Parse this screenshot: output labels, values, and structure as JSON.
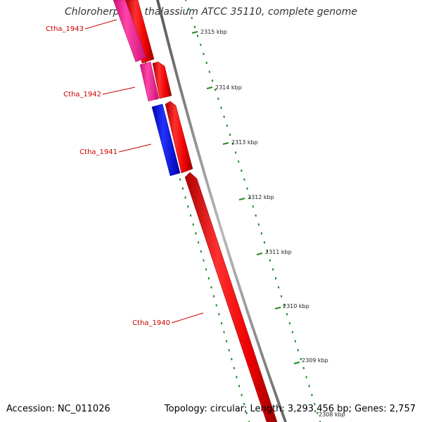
{
  "title": "Chloroherpeton thalassium ATCC 35110, complete genome",
  "footer": {
    "accession": "Accession: NC_011026",
    "summary": "Topology: circular; Length: 3,293,456 bp; Genes: 2,757"
  },
  "ruler": {
    "tick_labels": [
      "2315 kbp",
      "2314 kbp",
      "2313 kbp",
      "2312 kbp",
      "2311 kbp",
      "2310 kbp",
      "2309 kbp",
      "2308 kbp"
    ]
  },
  "genes": [
    {
      "name": "Ctha_1943",
      "strand": "forward",
      "color": "#ff0000"
    },
    {
      "name": "Ctha_1943",
      "strand": "reverse",
      "color": "#ff3399"
    },
    {
      "name": "Ctha_1942",
      "strand": "forward",
      "color": "#ff0000"
    },
    {
      "name": "Ctha_1942",
      "strand": "reverse",
      "color": "#ff3399"
    },
    {
      "name": "Ctha_1941",
      "strand": "forward",
      "color": "#ff0000"
    },
    {
      "name": "Ctha_1941",
      "strand": "reverse",
      "color": "#0000ff"
    },
    {
      "name": "Ctha_1940",
      "strand": "forward",
      "color": "#ff0000"
    }
  ],
  "colors": {
    "cds_forward": "#ff0000",
    "cds_reverse_pink": "#ff3399",
    "cds_reverse_blue": "#0000ff",
    "backbone": "#888888",
    "ruler_ticks": "#228b22",
    "gene_labels": "#cc0000"
  }
}
